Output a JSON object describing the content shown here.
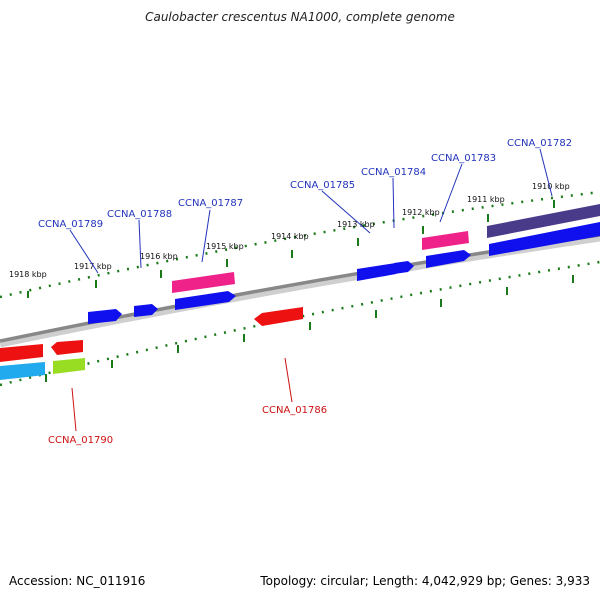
{
  "header": {
    "title": "Caulobacter crescentus NA1000, complete genome"
  },
  "footer": {
    "accession": "Accession: NC_011916",
    "summary": "Topology: circular; Length: 4,042,929 bp; Genes: 3,933"
  },
  "colors": {
    "backbone": "#8a8a8a",
    "tick": "#1a7a1a",
    "label_forward": "#2233bb",
    "label_reverse": "#cc1111",
    "gene_blue": "#1010ee",
    "gene_magenta": "#ee2288",
    "gene_navy": "#4a3a8a",
    "gene_red": "#ee1111",
    "gene_cyan": "#22aaee",
    "gene_lime": "#99dd22"
  },
  "scale": {
    "ticks": [
      "1918 kbp",
      "1917 kbp",
      "1916 kbp",
      "1915 kbp",
      "1914 kbp",
      "1913 kbp",
      "1912 kbp",
      "1911 kbp",
      "1910 kbp"
    ]
  },
  "genes": [
    {
      "id": "CCNA_01789",
      "strand": "forward"
    },
    {
      "id": "CCNA_01788",
      "strand": "forward"
    },
    {
      "id": "CCNA_01787",
      "strand": "forward"
    },
    {
      "id": "CCNA_01785",
      "strand": "forward"
    },
    {
      "id": "CCNA_01784",
      "strand": "forward"
    },
    {
      "id": "CCNA_01783",
      "strand": "forward"
    },
    {
      "id": "CCNA_01782",
      "strand": "forward"
    },
    {
      "id": "CCNA_01790",
      "strand": "reverse"
    },
    {
      "id": "CCNA_01786",
      "strand": "reverse"
    }
  ]
}
